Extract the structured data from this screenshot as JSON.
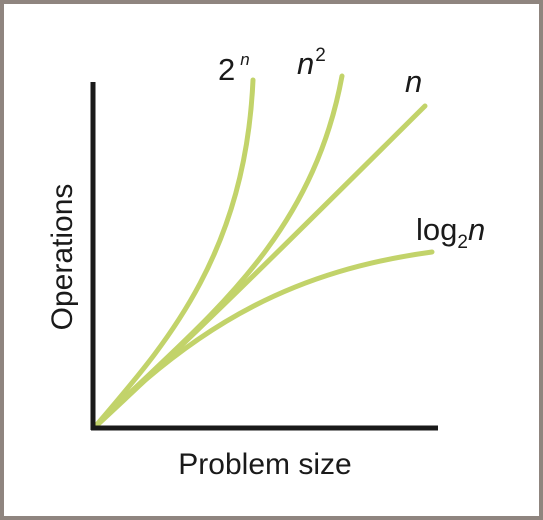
{
  "chart_data": {
    "type": "line",
    "title": "",
    "xlabel": "Problem size",
    "ylabel": "Operations",
    "grid": false,
    "legend": "none",
    "line_color": "#c2d36a",
    "axis_color": "#1a1a1a",
    "frame_color": "#8f857f",
    "series": [
      {
        "label_base": "2",
        "label_sup": "n"
      },
      {
        "label_base": "n",
        "label_sup": "2"
      },
      {
        "label_base": "n",
        "label_sup": ""
      },
      {
        "label_base": "log",
        "label_sub": "2",
        "label_tail": "n"
      }
    ]
  }
}
